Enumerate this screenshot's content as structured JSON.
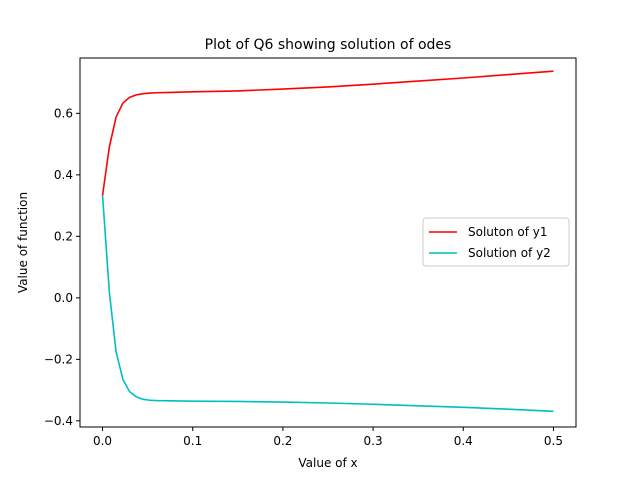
{
  "chart_data": {
    "type": "line",
    "title": "Plot of Q6 showing solution of odes",
    "xlabel": "Value of x",
    "ylabel": "Value of function",
    "xlim": [
      -0.025,
      0.525
    ],
    "ylim": [
      -0.42,
      0.78
    ],
    "xticks": [
      0.0,
      0.1,
      0.2,
      0.3,
      0.4,
      0.5
    ],
    "xtick_labels": [
      "0.0",
      "0.1",
      "0.2",
      "0.3",
      "0.4",
      "0.5"
    ],
    "yticks": [
      -0.4,
      -0.2,
      0.0,
      0.2,
      0.4,
      0.6
    ],
    "ytick_labels": [
      "−0.4",
      "−0.2",
      "0.0",
      "0.2",
      "0.4",
      "0.6"
    ],
    "grid": false,
    "legend_position": "center-right",
    "x": [
      0.0,
      0.0075,
      0.015,
      0.0225,
      0.03,
      0.0375,
      0.045,
      0.0525,
      0.06,
      0.075,
      0.1,
      0.15,
      0.2,
      0.25,
      0.3,
      0.35,
      0.4,
      0.45,
      0.5
    ],
    "series": [
      {
        "name": "Soluton of y1",
        "color": "#ff0000",
        "values": [
          0.333,
          0.49,
          0.588,
          0.633,
          0.652,
          0.66,
          0.664,
          0.666,
          0.667,
          0.668,
          0.67,
          0.673,
          0.679,
          0.686,
          0.695,
          0.705,
          0.715,
          0.726,
          0.737
        ]
      },
      {
        "name": "Solution of y2",
        "color": "#00bfbf",
        "values": [
          0.333,
          0.02,
          -0.175,
          -0.265,
          -0.305,
          -0.322,
          -0.33,
          -0.333,
          -0.334,
          -0.335,
          -0.336,
          -0.337,
          -0.339,
          -0.342,
          -0.346,
          -0.351,
          -0.356,
          -0.362,
          -0.369
        ]
      }
    ]
  }
}
